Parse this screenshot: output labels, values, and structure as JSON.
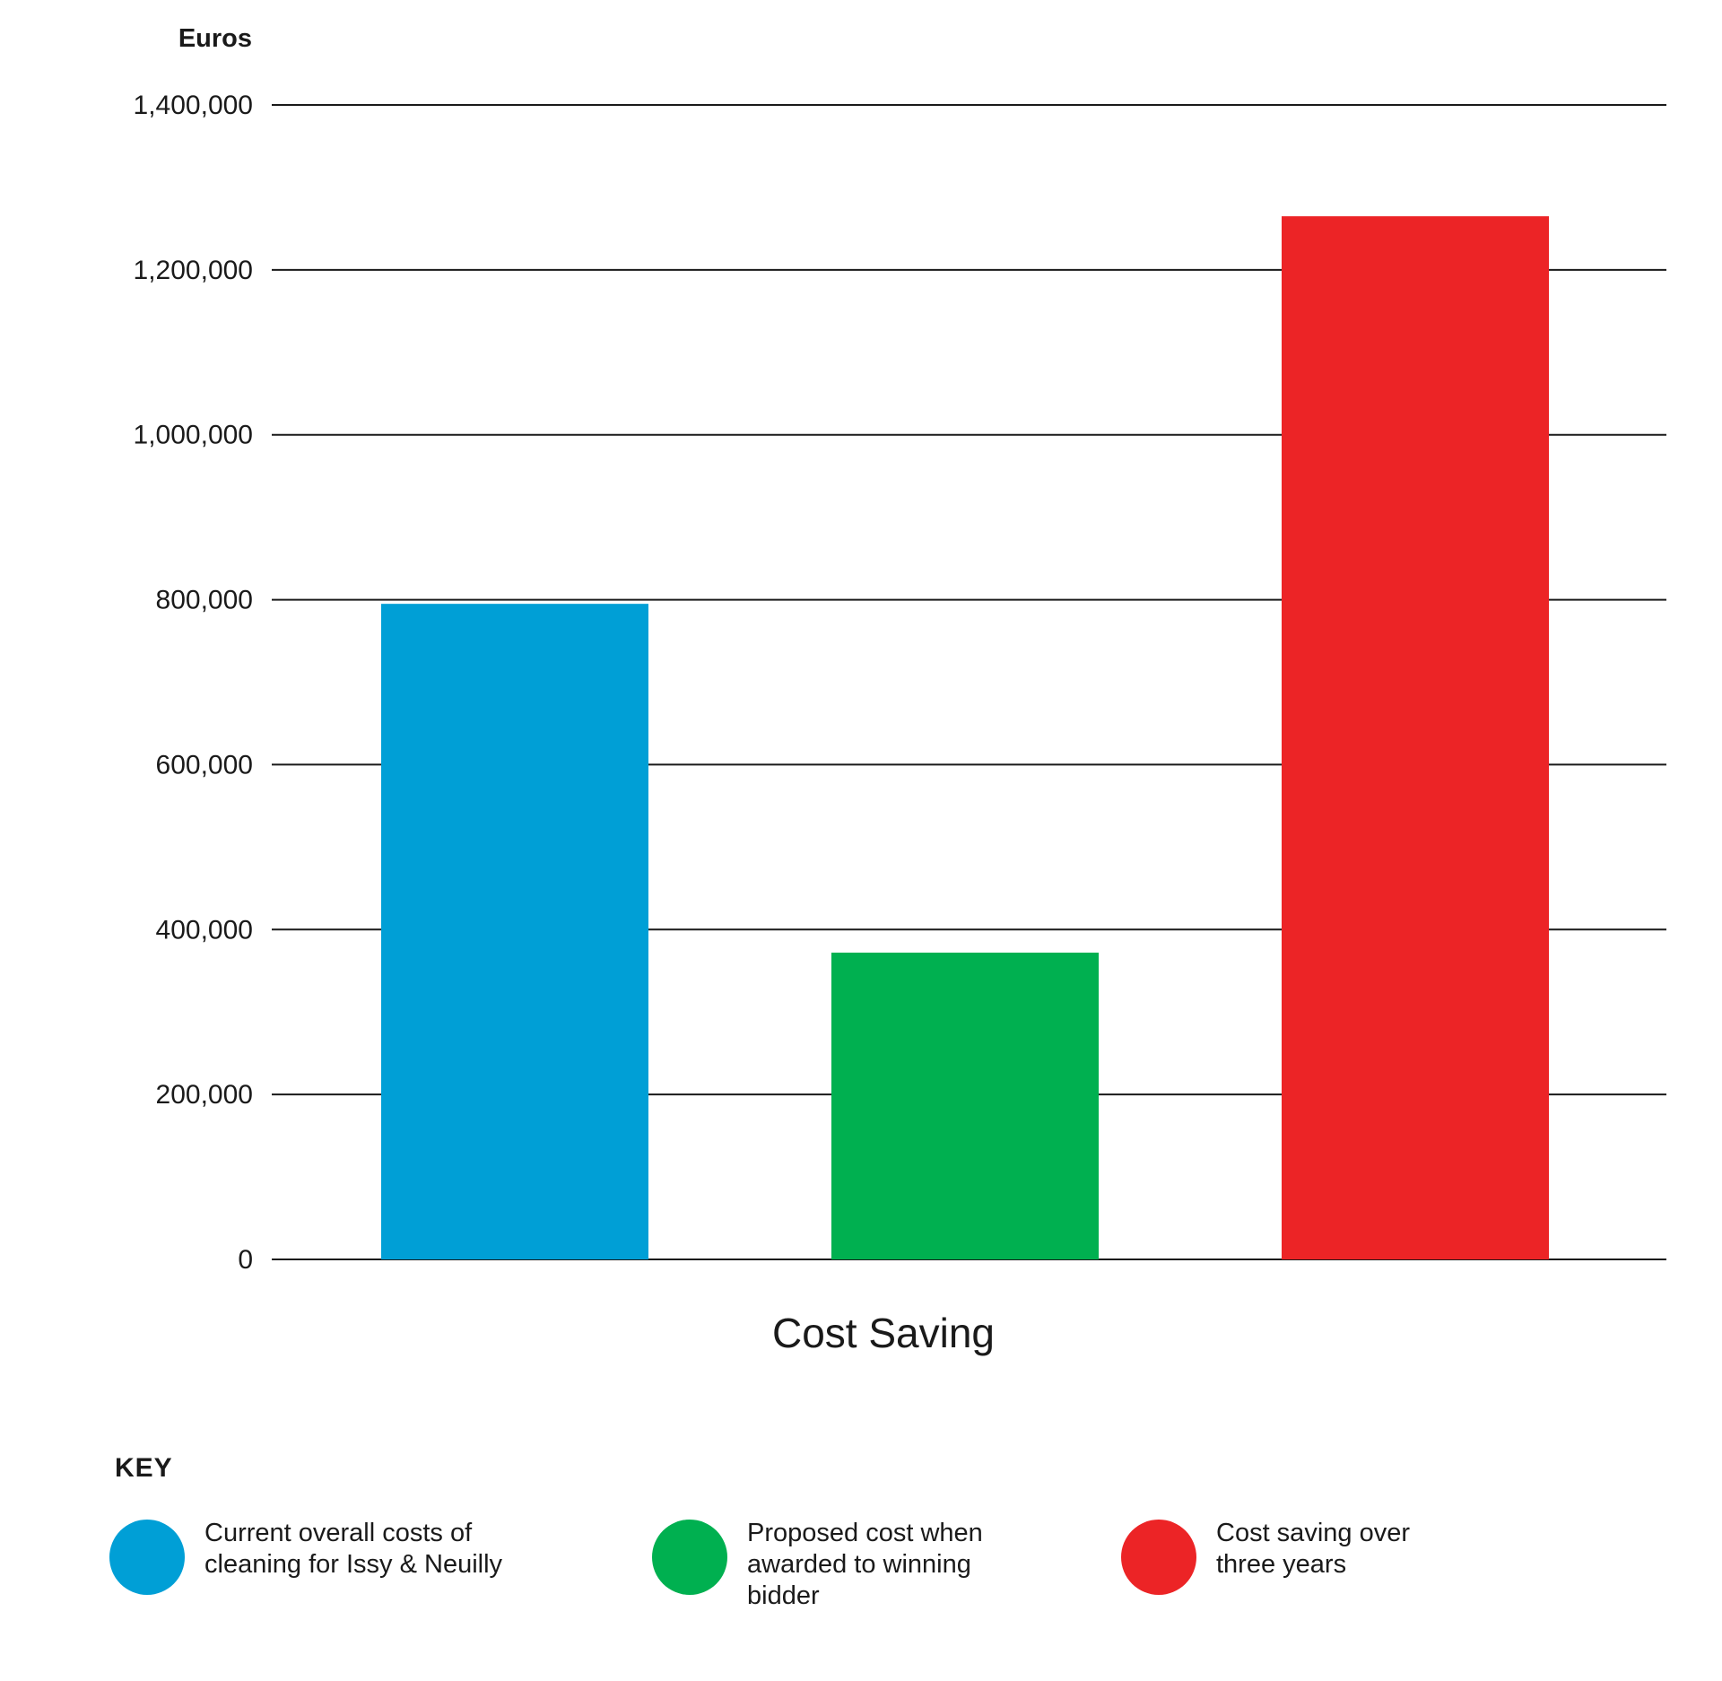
{
  "chart_data": {
    "type": "bar",
    "ylabel": "Euros",
    "xlabel": "Cost Saving",
    "ylim": [
      0,
      1400000
    ],
    "yticks": [
      0,
      200000,
      400000,
      600000,
      800000,
      1000000,
      1200000,
      1400000
    ],
    "ytick_labels": [
      "0",
      "200,000",
      "400,000",
      "600,000",
      "800,000",
      "1,000,000",
      "1,200,000",
      "1,400,000"
    ],
    "grid": true,
    "categories": [
      "Current overall costs of cleaning for Issy & Neuilly",
      "Proposed cost when awarded to winning bidder",
      "Cost saving over three years"
    ],
    "values": [
      795000,
      372000,
      1265000
    ],
    "colors": [
      "#009fd6",
      "#00b050",
      "#ec2426"
    ]
  },
  "key": {
    "title": "KEY",
    "items": [
      {
        "label": "Current overall costs of\ncleaning for Issy & Neuilly",
        "color": "#009fd6"
      },
      {
        "label": "Proposed cost when\nawarded to winning\nbidder",
        "color": "#00b050"
      },
      {
        "label": "Cost saving over\nthree years",
        "color": "#ec2426"
      }
    ]
  }
}
